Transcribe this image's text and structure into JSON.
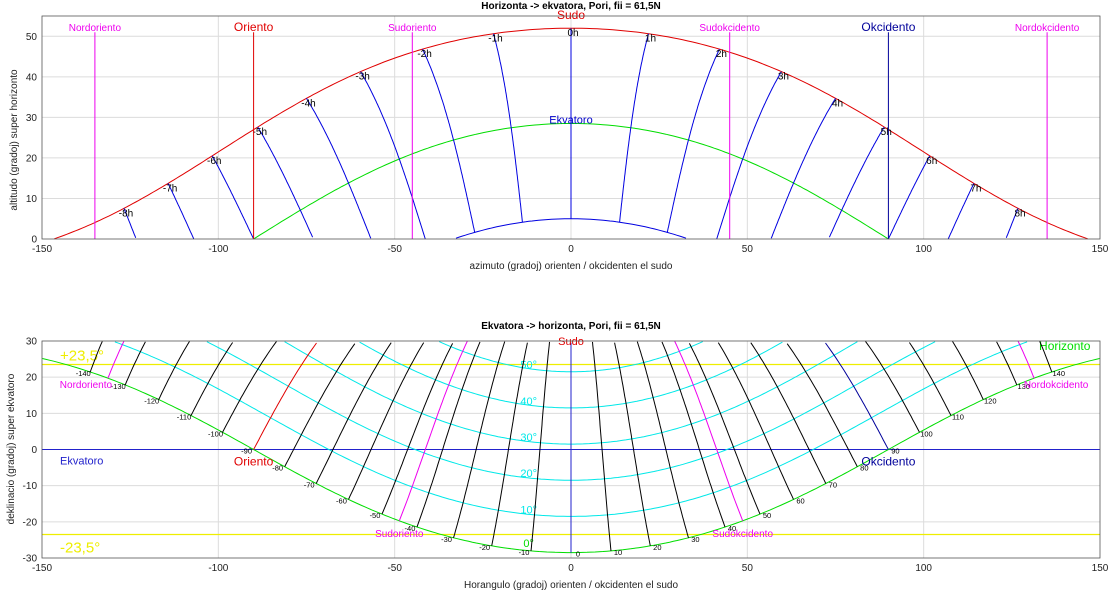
{
  "colors": {
    "sun_path": "#e00000",
    "hour_line": "#0000e0",
    "equator": "#00dd00",
    "marker_magenta": "#ee00ee",
    "marker_blue": "#00009a",
    "marker_red": "#e00000",
    "tropic": "#eeee00",
    "altitude_contour": "#00e8e8",
    "azimuth_line": "#000000",
    "equator_line": "#2222cc"
  },
  "chart_data": [
    {
      "type": "line",
      "title": "Horizonta -> ekvatora, Pori, fii = 61,5N",
      "xlabel": "azimuto (gradoj) orienten / okcidenten el sudo",
      "ylabel": "altitudo (gradoj) super horizonto",
      "xlim": [
        -150,
        150
      ],
      "ylim": [
        0,
        55
      ],
      "xticks": [
        "-150",
        "-100",
        "-50",
        "0",
        "50",
        "100",
        "150"
      ],
      "yticks": [
        "0",
        "10",
        "20",
        "30",
        "40",
        "50"
      ],
      "grid": true,
      "latitude_deg": 61.5,
      "series": [
        {
          "name": "",
          "role": "declination_curve",
          "declination": 23.5,
          "color": "#e00000"
        },
        {
          "name": "Ekvatoro",
          "role": "declination_curve",
          "declination": 0,
          "color": "#00dd00"
        },
        {
          "name": "",
          "role": "declination_curve",
          "declination": -23.5,
          "color": "#0000e0"
        },
        {
          "name": "",
          "role": "hour_lines",
          "hours": [
            -8,
            -7,
            -6,
            -5,
            -4,
            -3,
            -2,
            -1,
            0,
            1,
            2,
            3,
            4,
            5,
            6,
            7,
            8
          ],
          "color": "#0000e0"
        }
      ],
      "markers": [
        {
          "name": "Nordoriento",
          "azimuth": -135,
          "color": "#ee00ee"
        },
        {
          "name": "Oriento",
          "azimuth": -90,
          "color": "#e00000"
        },
        {
          "name": "Sudoriento",
          "azimuth": -45,
          "color": "#ee00ee"
        },
        {
          "name": "Sudo",
          "azimuth": 0,
          "color": "#e00000"
        },
        {
          "name": "Sudokcidento",
          "azimuth": 45,
          "color": "#ee00ee"
        },
        {
          "name": "Okcidento",
          "azimuth": 90,
          "color": "#00009a"
        },
        {
          "name": "Nordokcidento",
          "azimuth": 135,
          "color": "#ee00ee"
        }
      ],
      "hour_labels": [
        "-8h",
        "-7h",
        "-6h",
        "-5h",
        "-4h",
        "-3h",
        "-2h",
        "-1h",
        "0h",
        "1h",
        "2h",
        "3h",
        "4h",
        "5h",
        "6h",
        "7h",
        "8h"
      ]
    },
    {
      "type": "line",
      "title": "Ekvatora -> horizonta, Pori, fii = 61,5N",
      "xlabel": "Horangulo (gradoj) orienten / okcidenten el sudo",
      "ylabel": "deklinacio (gradoj) super ekvatoro",
      "xlim": [
        -150,
        150
      ],
      "ylim": [
        -30,
        30
      ],
      "xticks": [
        "-150",
        "-100",
        "-50",
        "0",
        "50",
        "100",
        "150"
      ],
      "yticks": [
        "-30",
        "-20",
        "-10",
        "0",
        "10",
        "20",
        "30"
      ],
      "grid": true,
      "latitude_deg": 61.5,
      "tropics": [
        {
          "label": "+23,5°",
          "declination": 23.5
        },
        {
          "label": "-23,5°",
          "declination": -23.5
        }
      ],
      "equator_label": "Ekvatoro",
      "horizon_label": "Horizonto",
      "altitude_contours": [
        {
          "label": "0°",
          "altitude": 0
        },
        {
          "label": "10°",
          "altitude": 10
        },
        {
          "label": "20°",
          "altitude": 20
        },
        {
          "label": "30°",
          "altitude": 30
        },
        {
          "label": "40°",
          "altitude": 40
        },
        {
          "label": "50°",
          "altitude": 50
        }
      ],
      "azimuth_lines": [
        -140,
        -130,
        -120,
        -110,
        -100,
        -90,
        -80,
        -70,
        -60,
        -50,
        -40,
        -30,
        -20,
        -10,
        0,
        10,
        20,
        30,
        40,
        50,
        60,
        70,
        80,
        90,
        100,
        110,
        120,
        130,
        140
      ],
      "azimuth_labels": [
        "-140",
        "-130",
        "-120",
        "-110",
        "-100",
        "-90",
        "-80",
        "-70",
        "-60",
        "-50",
        "-40",
        "-30",
        "-20",
        "-10",
        "0",
        "10",
        "20",
        "30",
        "40",
        "50",
        "60",
        "70",
        "80",
        "90",
        "100",
        "110",
        "120",
        "130",
        "140"
      ],
      "markers": [
        {
          "name": "Nordoriento",
          "azimuth": -135,
          "color": "#ee00ee"
        },
        {
          "name": "Oriento",
          "azimuth": -90,
          "color": "#e00000"
        },
        {
          "name": "Sudoriento",
          "azimuth": -45,
          "color": "#ee00ee"
        },
        {
          "name": "Sudo",
          "azimuth": 0,
          "color": "#e00000"
        },
        {
          "name": "Sudokcidento",
          "azimuth": 45,
          "color": "#ee00ee"
        },
        {
          "name": "Okcidento",
          "azimuth": 90,
          "color": "#00009a"
        },
        {
          "name": "Nordokcidento",
          "azimuth": 135,
          "color": "#ee00ee"
        }
      ]
    }
  ]
}
